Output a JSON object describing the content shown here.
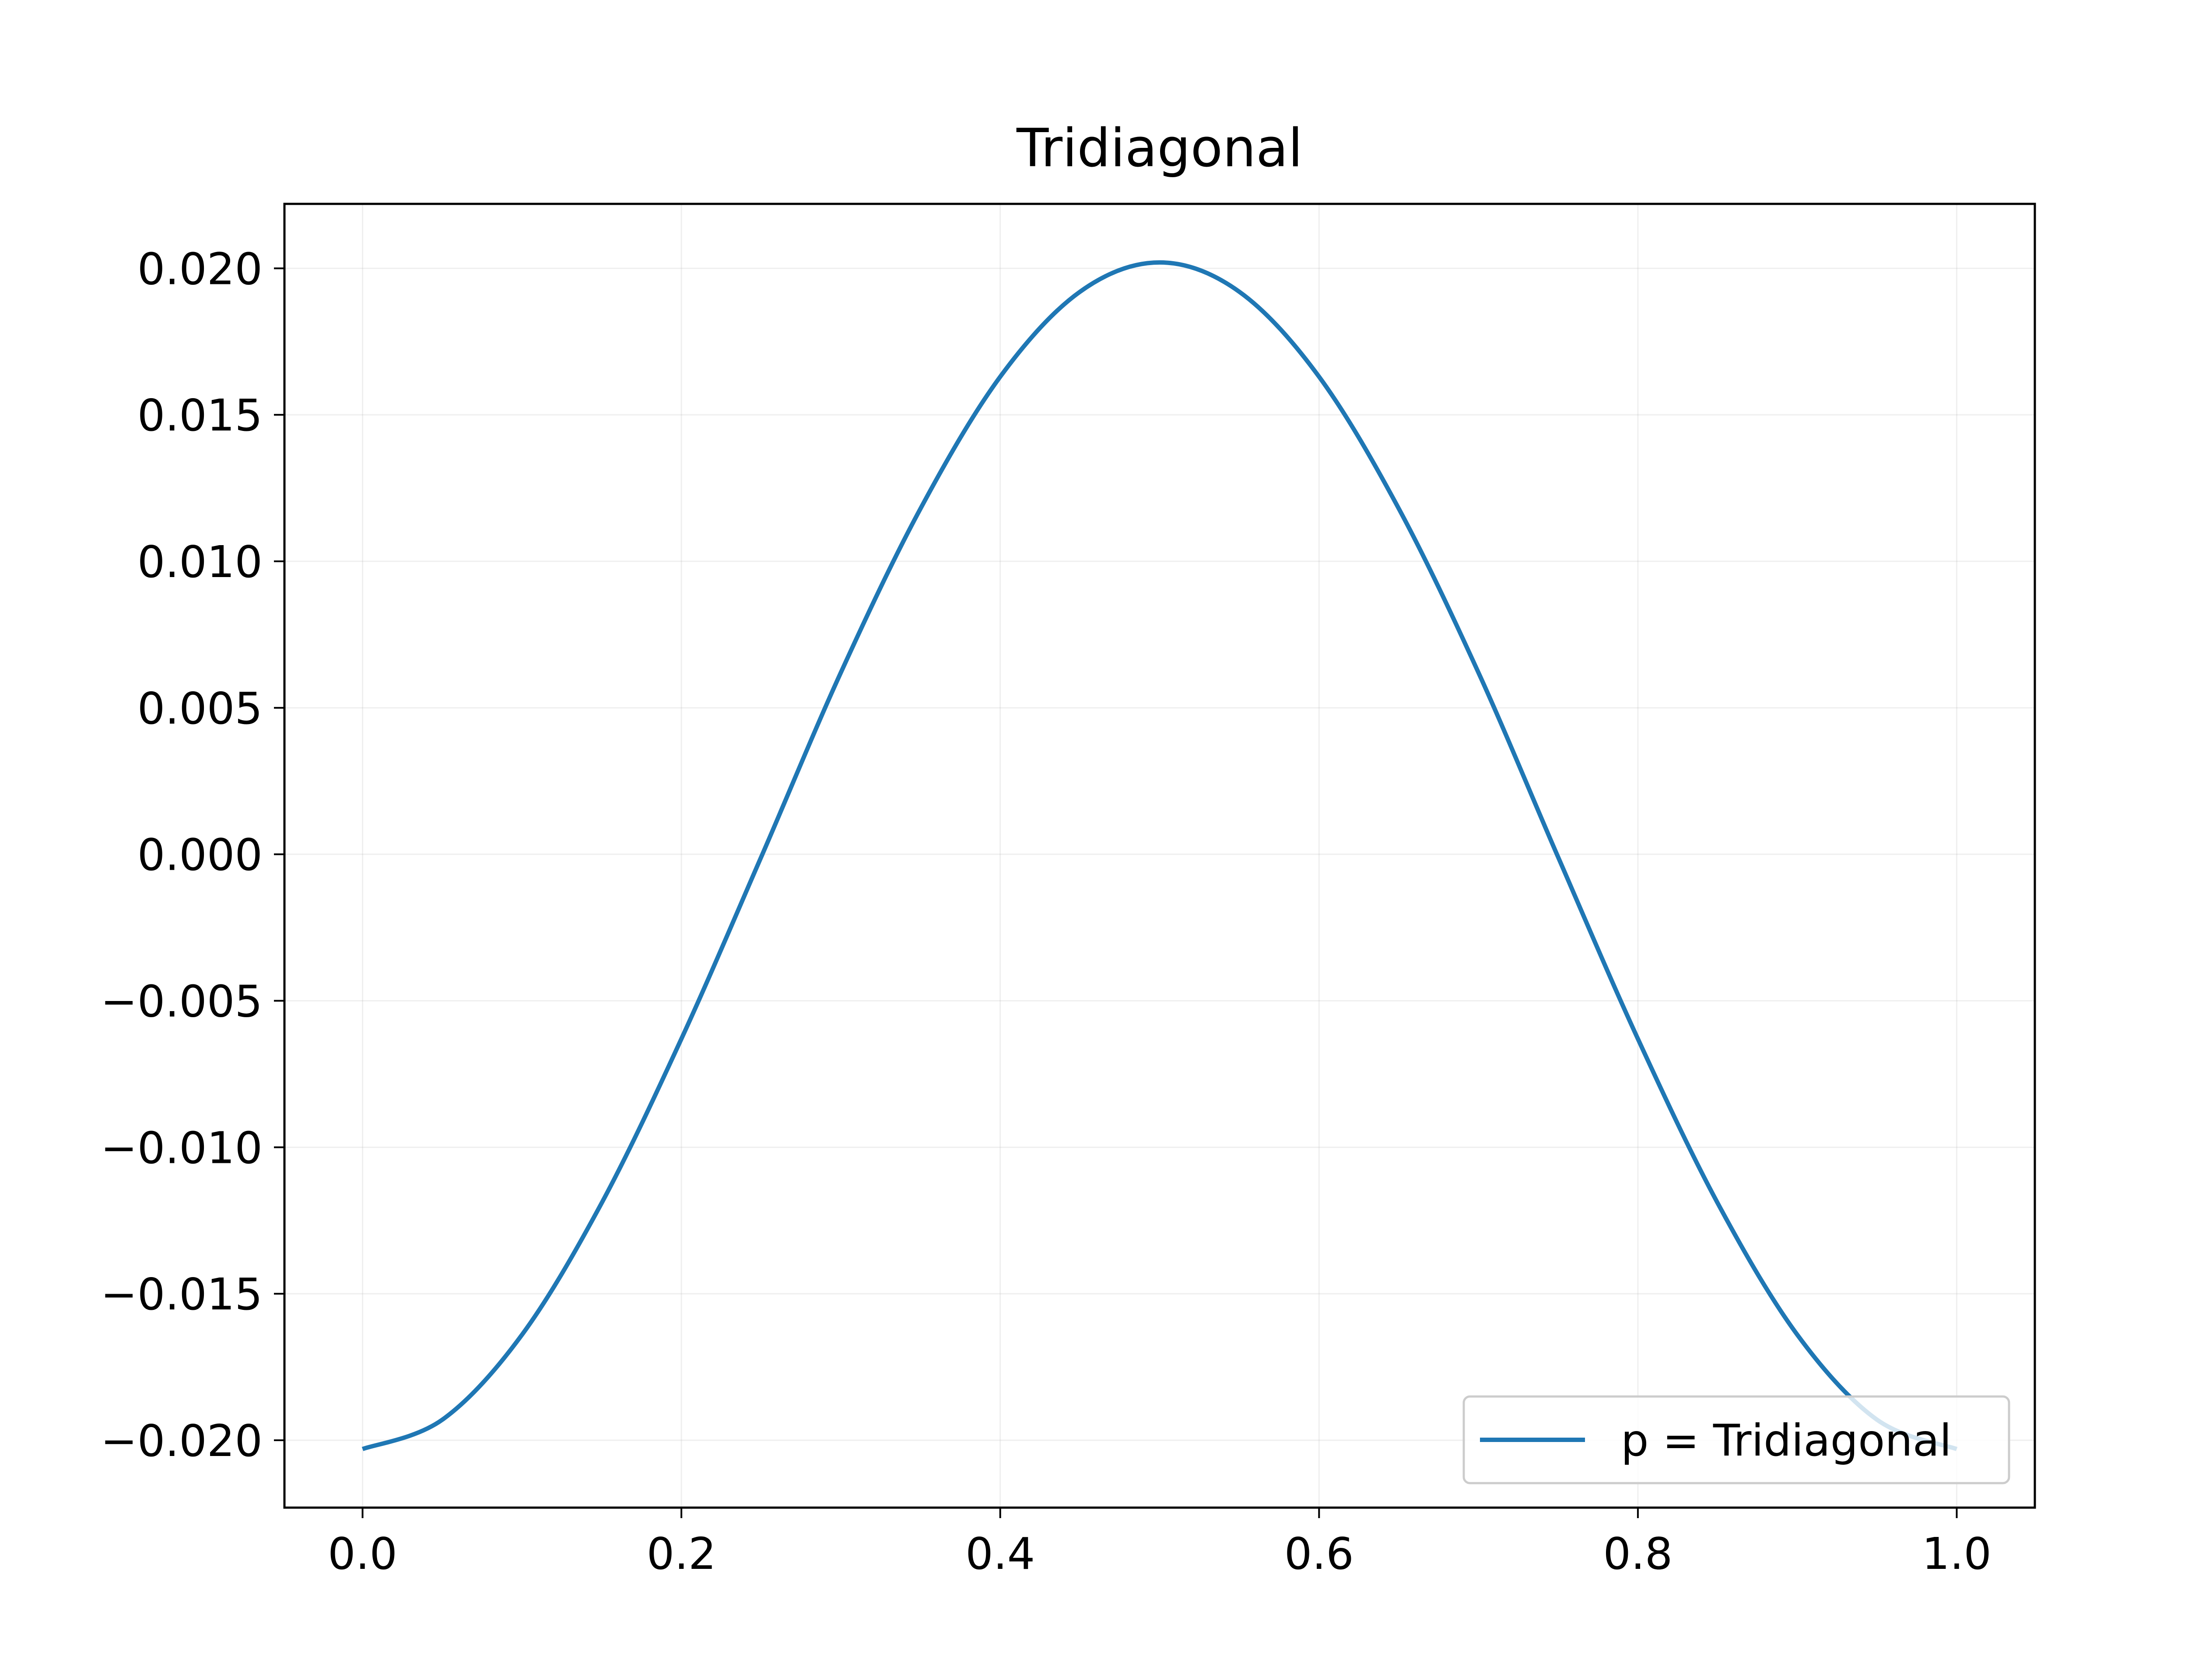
{
  "chart_data": {
    "type": "line",
    "title": "Tridiagonal",
    "xlabel": "",
    "ylabel": "",
    "xlim": [
      -0.049,
      1.049
    ],
    "ylim": [
      -0.0223,
      0.0222
    ],
    "xticks": [
      0.0,
      0.2,
      0.4,
      0.6,
      0.8,
      1.0
    ],
    "xtick_labels": [
      "0.0",
      "0.2",
      "0.4",
      "0.6",
      "0.8",
      "1.0"
    ],
    "yticks": [
      -0.02,
      -0.015,
      -0.01,
      -0.005,
      0.0,
      0.005,
      0.01,
      0.015,
      0.02
    ],
    "ytick_labels": [
      "−0.020",
      "−0.015",
      "−0.010",
      "−0.005",
      "0.000",
      "0.005",
      "0.010",
      "0.015",
      "0.020"
    ],
    "grid": true,
    "legend_position": "lower right",
    "series": [
      {
        "name": "p = Tridiagonal",
        "color": "#1f77b4",
        "x": [
          0.0,
          0.05,
          0.1,
          0.15,
          0.2,
          0.25,
          0.3,
          0.35,
          0.4,
          0.45,
          0.5,
          0.55,
          0.6,
          0.65,
          0.7,
          0.75,
          0.8,
          0.85,
          0.9,
          0.95,
          1.0
        ],
        "y": [
          -0.0203,
          -0.0193,
          -0.0164,
          -0.0119,
          -0.0063,
          -0.0001,
          0.0062,
          0.0118,
          0.0163,
          0.0192,
          0.0202,
          0.0192,
          0.0163,
          0.0118,
          0.0062,
          -0.0001,
          -0.0063,
          -0.0119,
          -0.0164,
          -0.0193,
          -0.0203
        ]
      }
    ]
  }
}
